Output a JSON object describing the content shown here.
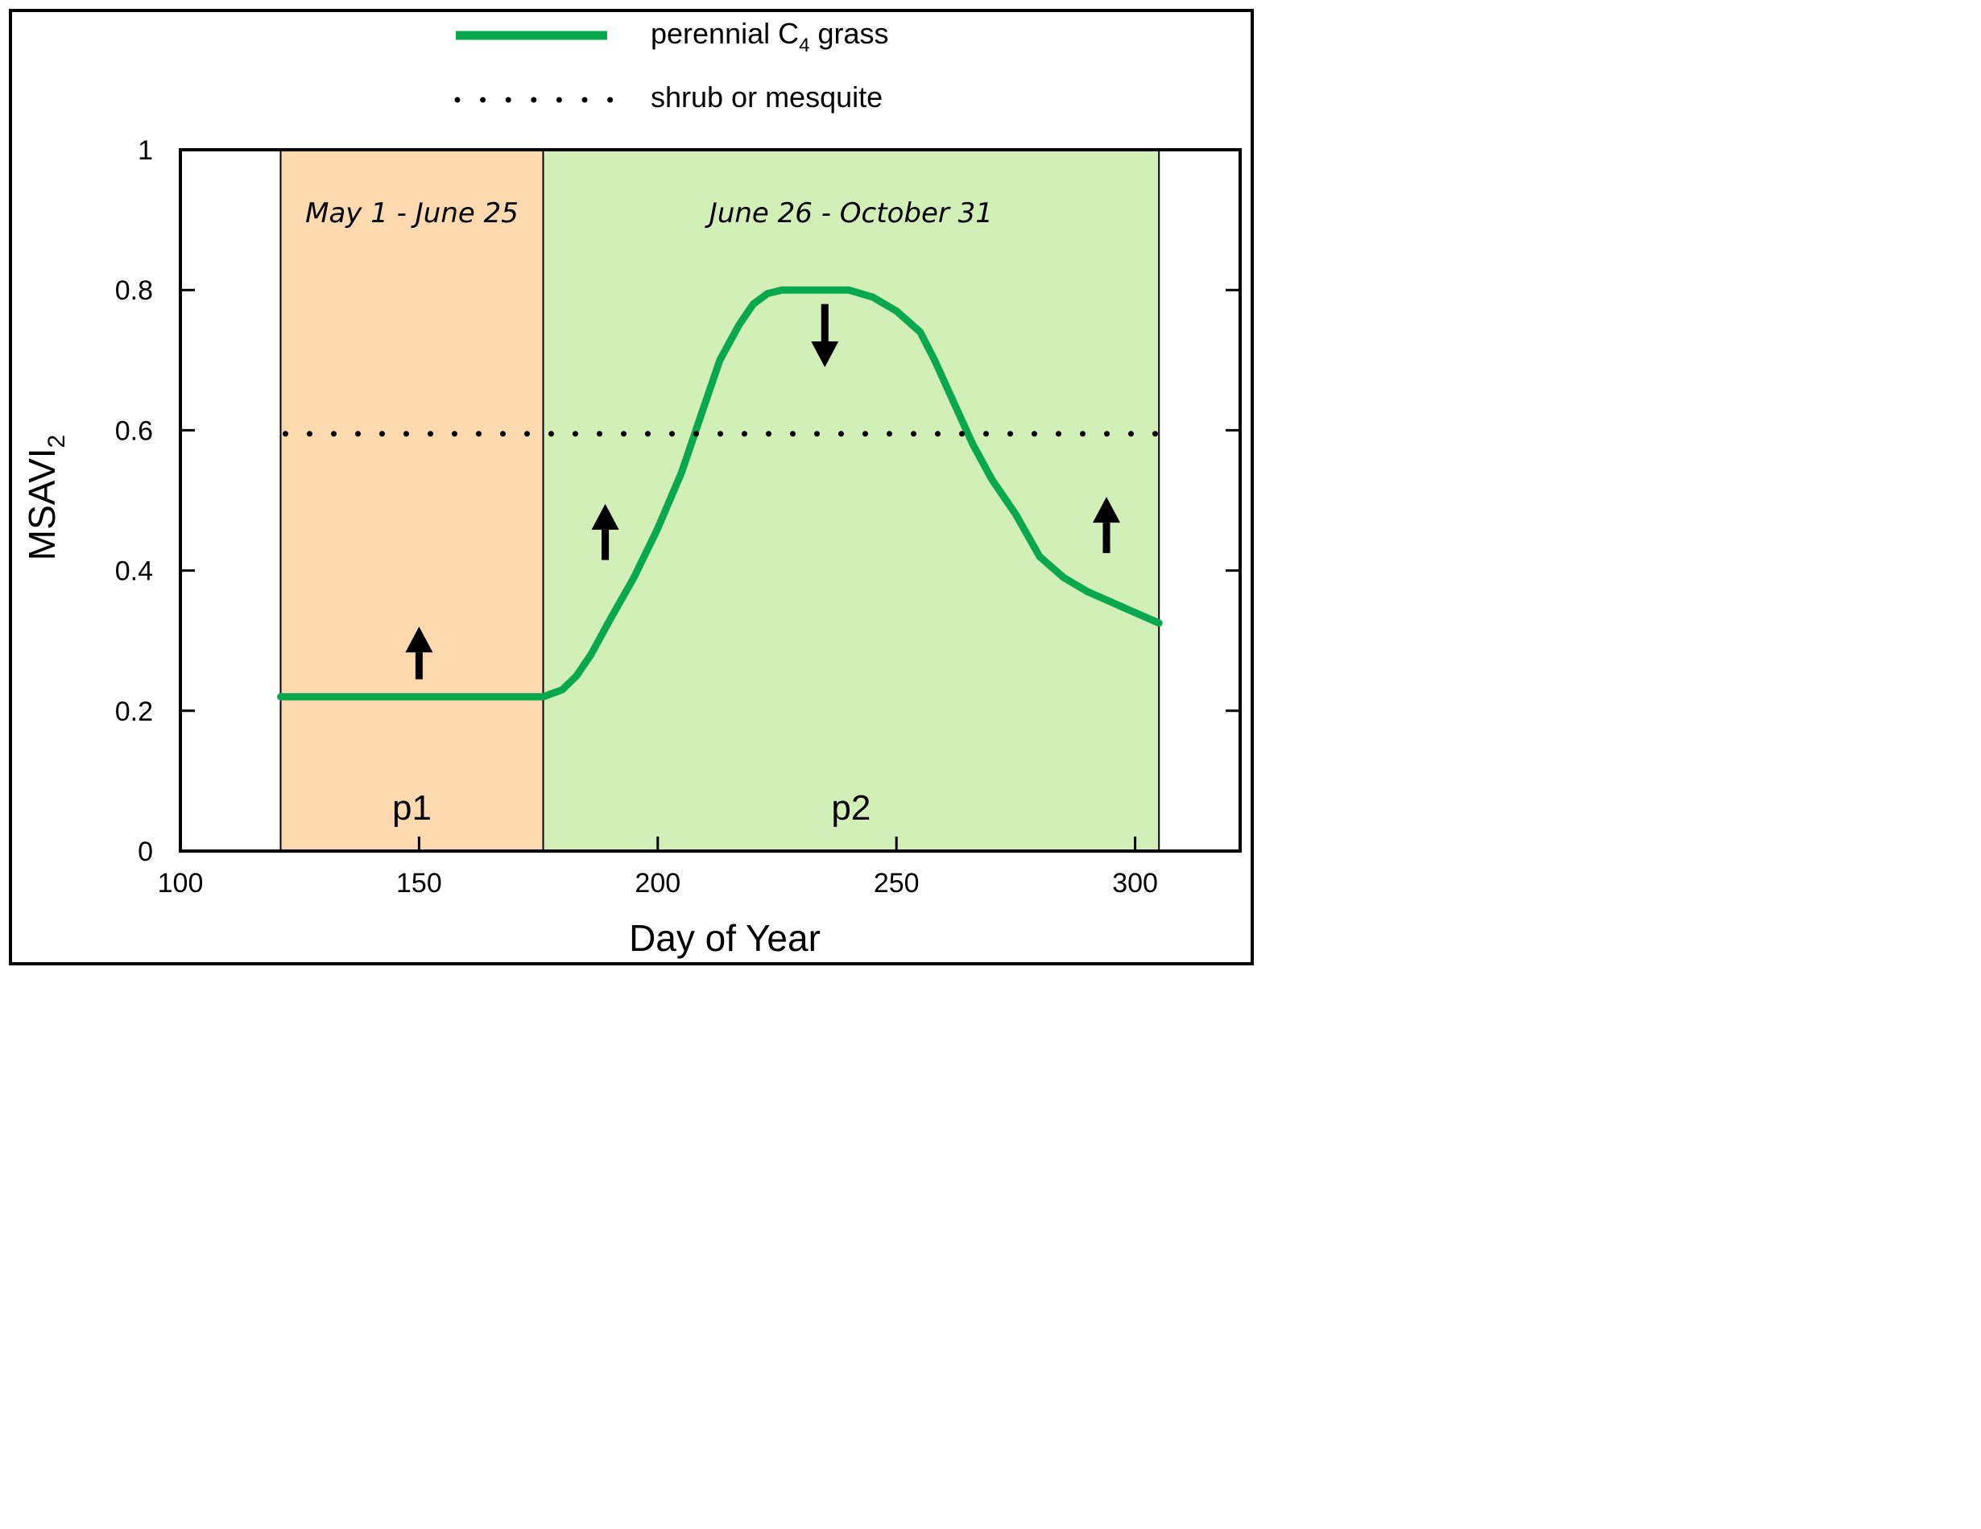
{
  "chart_data": {
    "type": "line",
    "xlabel": "Day of Year",
    "ylabel_main": "MSAVI",
    "ylabel_sub": "2",
    "xlim": [
      100,
      322
    ],
    "ylim": [
      0,
      1
    ],
    "x_ticks": [
      100,
      150,
      200,
      250,
      300
    ],
    "x_tick_labels": [
      "100",
      "150",
      "200",
      "250",
      "300"
    ],
    "y_ticks": [
      0,
      0.2,
      0.4,
      0.6,
      0.8,
      1
    ],
    "y_tick_labels": [
      "0",
      "0.2",
      "0.4",
      "0.6",
      "0.8",
      "1"
    ],
    "legend": [
      {
        "name_main": "perennial C",
        "name_sub": "4",
        "name_tail": " grass",
        "style": "solid"
      },
      {
        "name_main": "shrub or mesquite",
        "style": "dotted"
      }
    ],
    "periods": [
      {
        "name": "p1",
        "date_range": "May 1 - June 25",
        "x_start": 121,
        "x_end": 176,
        "color": "#fdd9b0"
      },
      {
        "name": "p2",
        "date_range": "June 26 - October 31",
        "x_start": 176,
        "x_end": 305,
        "color": "#d2efb8"
      }
    ],
    "series": [
      {
        "name": "perennial C4 grass",
        "color": "#0aa84e",
        "style": "solid",
        "x": [
          121,
          130,
          140,
          150,
          160,
          170,
          176,
          180,
          183,
          186,
          190,
          195,
          200,
          205,
          209,
          213,
          217,
          220,
          223,
          226,
          230,
          240,
          245,
          250,
          255,
          258,
          262,
          266,
          270,
          275,
          280,
          285,
          290,
          295,
          300,
          305
        ],
        "y": [
          0.22,
          0.22,
          0.22,
          0.22,
          0.22,
          0.22,
          0.22,
          0.23,
          0.25,
          0.28,
          0.33,
          0.39,
          0.46,
          0.54,
          0.62,
          0.7,
          0.75,
          0.78,
          0.795,
          0.8,
          0.8,
          0.8,
          0.79,
          0.77,
          0.74,
          0.7,
          0.64,
          0.58,
          0.53,
          0.48,
          0.42,
          0.39,
          0.37,
          0.355,
          0.34,
          0.325
        ]
      },
      {
        "name": "shrub or mesquite",
        "color": "#000000",
        "style": "dotted",
        "x": [
          121,
          305
        ],
        "y": [
          0.595,
          0.595
        ]
      }
    ],
    "arrows": [
      {
        "x": 150,
        "y_tail": 0.245,
        "y_head": 0.32,
        "direction": "up"
      },
      {
        "x": 189,
        "y_tail": 0.415,
        "y_head": 0.495,
        "direction": "up"
      },
      {
        "x": 235,
        "y_tail": 0.78,
        "y_head": 0.69,
        "direction": "down"
      },
      {
        "x": 294,
        "y_tail": 0.425,
        "y_head": 0.505,
        "direction": "up"
      }
    ]
  }
}
